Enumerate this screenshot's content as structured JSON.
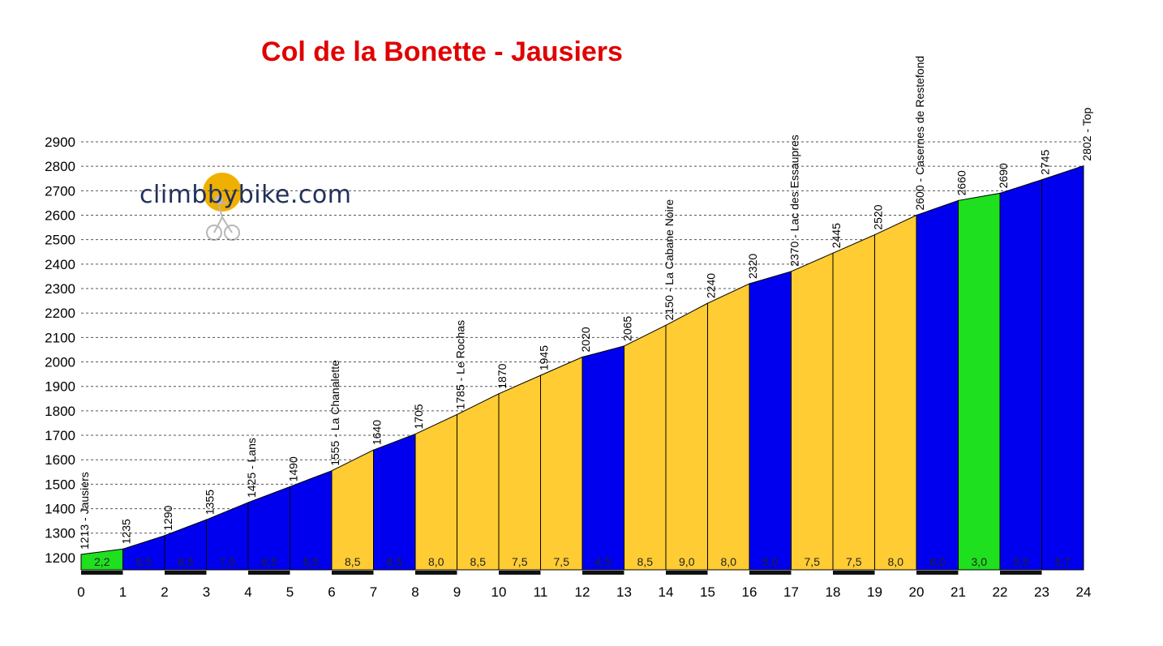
{
  "chart_data": {
    "type": "area",
    "title": "Col de la Bonette - Jausiers",
    "xlabel": "",
    "ylabel": "",
    "x": [
      0,
      1,
      2,
      3,
      4,
      5,
      6,
      7,
      8,
      9,
      10,
      11,
      12,
      13,
      14,
      15,
      16,
      17,
      18,
      19,
      20,
      21,
      22,
      23,
      24
    ],
    "elevations": [
      1213,
      1235,
      1290,
      1355,
      1425,
      1490,
      1555,
      1640,
      1705,
      1785,
      1870,
      1945,
      2020,
      2065,
      2150,
      2240,
      2320,
      2370,
      2445,
      2520,
      2600,
      2660,
      2690,
      2745,
      2802
    ],
    "waypoint_labels": [
      "1213 - Jausiers",
      "1235",
      "1290",
      "1355",
      "1425 - Lans",
      "1490",
      "1555 - La Chanalette",
      "1640",
      "1705",
      "1785 - Le Rochas",
      "1870",
      "1945",
      "2020",
      "2065",
      "2150 - La Cabane Noire",
      "2240",
      "2320",
      "2370 - Lac des Essaupres",
      "2445",
      "2520",
      "2600 - Casernes de Restefond",
      "2660",
      "2690",
      "2745",
      "2802 - Top"
    ],
    "segment_gradients": [
      "2,2",
      "5,5",
      "6,5",
      "7,0",
      "6,5",
      "6,5",
      "8,5",
      "6,5",
      "8,0",
      "8,5",
      "7,5",
      "7,5",
      "4,5",
      "8,5",
      "9,0",
      "8,0",
      "5,0",
      "7,5",
      "7,5",
      "8,0",
      "6,0",
      "3,0",
      "5,5",
      "5,7"
    ],
    "segment_colors": [
      "#1ee01e",
      "#0000ee",
      "#0000ee",
      "#0000ee",
      "#0000ee",
      "#0000ee",
      "#ffcc33",
      "#0000ee",
      "#ffcc33",
      "#ffcc33",
      "#ffcc33",
      "#ffcc33",
      "#0000ee",
      "#ffcc33",
      "#ffcc33",
      "#ffcc33",
      "#0000ee",
      "#ffcc33",
      "#ffcc33",
      "#ffcc33",
      "#0000ee",
      "#1ee01e",
      "#0000ee",
      "#0000ee"
    ],
    "y_ticks": [
      1200,
      1300,
      1400,
      1500,
      1600,
      1700,
      1800,
      1900,
      2000,
      2100,
      2200,
      2300,
      2400,
      2500,
      2600,
      2700,
      2800,
      2900
    ],
    "x_ticks": [
      "0",
      "1",
      "2",
      "3",
      "4",
      "5",
      "6",
      "7",
      "8",
      "9",
      "10",
      "11",
      "12",
      "13",
      "14",
      "15",
      "16",
      "17",
      "18",
      "19",
      "20",
      "21",
      "22",
      "23",
      "24"
    ],
    "ylim": [
      1150,
      2900
    ],
    "xlim": [
      0,
      24
    ],
    "grid": true
  },
  "logo": {
    "text": "climbbybike.com",
    "accent_color": "#f0b000"
  }
}
